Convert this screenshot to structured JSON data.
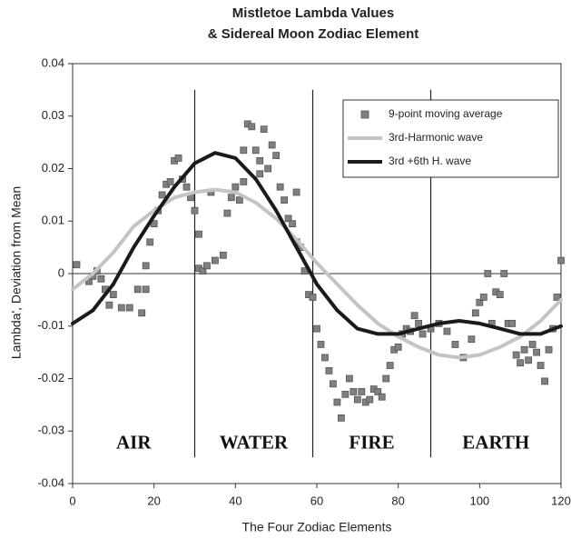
{
  "chart_data": {
    "type": "scatter",
    "title": "Mistletoe Lambda Values",
    "subtitle": "& Sidereal Moon Zodiac Element",
    "x_label": "The Four Zodiac Elements",
    "y_label": "Lambda', Deviation from Mean",
    "xlim": [
      0,
      120
    ],
    "xticks": [
      0,
      20,
      40,
      60,
      80,
      100,
      120
    ],
    "ylim": [
      -0.04,
      0.04
    ],
    "yticks": [
      -0.04,
      -0.03,
      -0.02,
      -0.01,
      0,
      0.01,
      0.02,
      0.03,
      0.04
    ],
    "legend": "upper right",
    "regions": [
      "AIR",
      "WATER",
      "FIRE",
      "EARTH"
    ],
    "dividers": [
      30,
      59,
      88
    ],
    "series": [
      {
        "name": "9-point moving average",
        "type": "scatter",
        "color": "#808080",
        "x": [
          1,
          4,
          5,
          6,
          7,
          8,
          9,
          10,
          12,
          14,
          16,
          17,
          18,
          18,
          19,
          20,
          21,
          22,
          23,
          24,
          25,
          26,
          27,
          28,
          29,
          30,
          31,
          31,
          32,
          33,
          34,
          35,
          37,
          38,
          39,
          40,
          41,
          42,
          42,
          43,
          44,
          45,
          46,
          46,
          47,
          48,
          49,
          50,
          51,
          52,
          53,
          54,
          55,
          55,
          56,
          57,
          58,
          59,
          60,
          61,
          62,
          63,
          64,
          65,
          66,
          67,
          68,
          69,
          70,
          71,
          72,
          73,
          74,
          75,
          76,
          77,
          78,
          79,
          80,
          81,
          82,
          83,
          84,
          85,
          86,
          88,
          90,
          92,
          94,
          96,
          98,
          99,
          100,
          101,
          102,
          103,
          104,
          105,
          106,
          107,
          108,
          109,
          110,
          111,
          112,
          113,
          114,
          115,
          116,
          117,
          118,
          119,
          120
        ],
        "values": [
          0.0017,
          -0.0015,
          -0.0005,
          0.0005,
          -0.001,
          -0.003,
          -0.006,
          -0.004,
          -0.0065,
          -0.0065,
          -0.003,
          -0.0075,
          -0.003,
          0.0015,
          0.006,
          0.0095,
          0.012,
          0.015,
          0.017,
          0.0175,
          0.0215,
          0.022,
          0.018,
          0.0165,
          0.0145,
          0.012,
          0.0075,
          0.001,
          0.0005,
          0.0015,
          0.0155,
          0.0025,
          0.0035,
          0.0115,
          0.0145,
          0.0165,
          0.014,
          0.0175,
          0.0235,
          0.0285,
          0.028,
          0.0235,
          0.0215,
          0.019,
          0.0275,
          0.02,
          0.0245,
          0.0225,
          0.0165,
          0.014,
          0.0105,
          0.0095,
          0.0155,
          0.006,
          0.005,
          0.0005,
          -0.004,
          -0.0045,
          -0.0105,
          -0.0135,
          -0.016,
          -0.0185,
          -0.021,
          -0.0245,
          -0.0275,
          -0.023,
          -0.02,
          -0.0225,
          -0.024,
          -0.0225,
          -0.0245,
          -0.024,
          -0.022,
          -0.0225,
          -0.0235,
          -0.02,
          -0.0175,
          -0.0145,
          -0.014,
          -0.0115,
          -0.0105,
          -0.011,
          -0.008,
          -0.0095,
          -0.0115,
          -0.0105,
          -0.0095,
          -0.011,
          -0.0135,
          -0.016,
          -0.0125,
          -0.0075,
          -0.0055,
          -0.0045,
          0,
          -0.0095,
          -0.0035,
          -0.004,
          0,
          -0.0095,
          -0.0095,
          -0.0155,
          -0.017,
          -0.0145,
          -0.0165,
          -0.0135,
          -0.015,
          -0.0175,
          -0.0205,
          -0.0145,
          -0.0105,
          -0.0045,
          0.0025
        ]
      },
      {
        "name": "3rd-Harmonic wave",
        "type": "line",
        "color": "#c4c4c4",
        "x": [
          0,
          5,
          10,
          15,
          20,
          25,
          30,
          35,
          40,
          45,
          50,
          55,
          60,
          65,
          70,
          75,
          80,
          85,
          90,
          95,
          100,
          105,
          110,
          115,
          120
        ],
        "values": [
          -0.003,
          0,
          0.004,
          0.009,
          0.012,
          0.0145,
          0.0155,
          0.016,
          0.0155,
          0.0135,
          0.0105,
          0.0065,
          0.002,
          -0.002,
          -0.006,
          -0.0095,
          -0.012,
          -0.014,
          -0.0155,
          -0.016,
          -0.0155,
          -0.014,
          -0.012,
          -0.009,
          -0.005
        ]
      },
      {
        "name": "3rd +6th H. wave",
        "type": "line",
        "color": "#1a1a1a",
        "x": [
          0,
          5,
          10,
          15,
          20,
          25,
          30,
          35,
          40,
          45,
          50,
          55,
          60,
          65,
          70,
          75,
          80,
          85,
          90,
          95,
          100,
          105,
          110,
          115,
          120
        ],
        "values": [
          -0.0095,
          -0.007,
          -0.002,
          0.005,
          0.011,
          0.0165,
          0.021,
          0.023,
          0.022,
          0.018,
          0.012,
          0.005,
          -0.002,
          -0.007,
          -0.0105,
          -0.0115,
          -0.0115,
          -0.0105,
          -0.0095,
          -0.009,
          -0.0095,
          -0.0105,
          -0.0115,
          -0.0115,
          -0.01
        ]
      }
    ]
  }
}
